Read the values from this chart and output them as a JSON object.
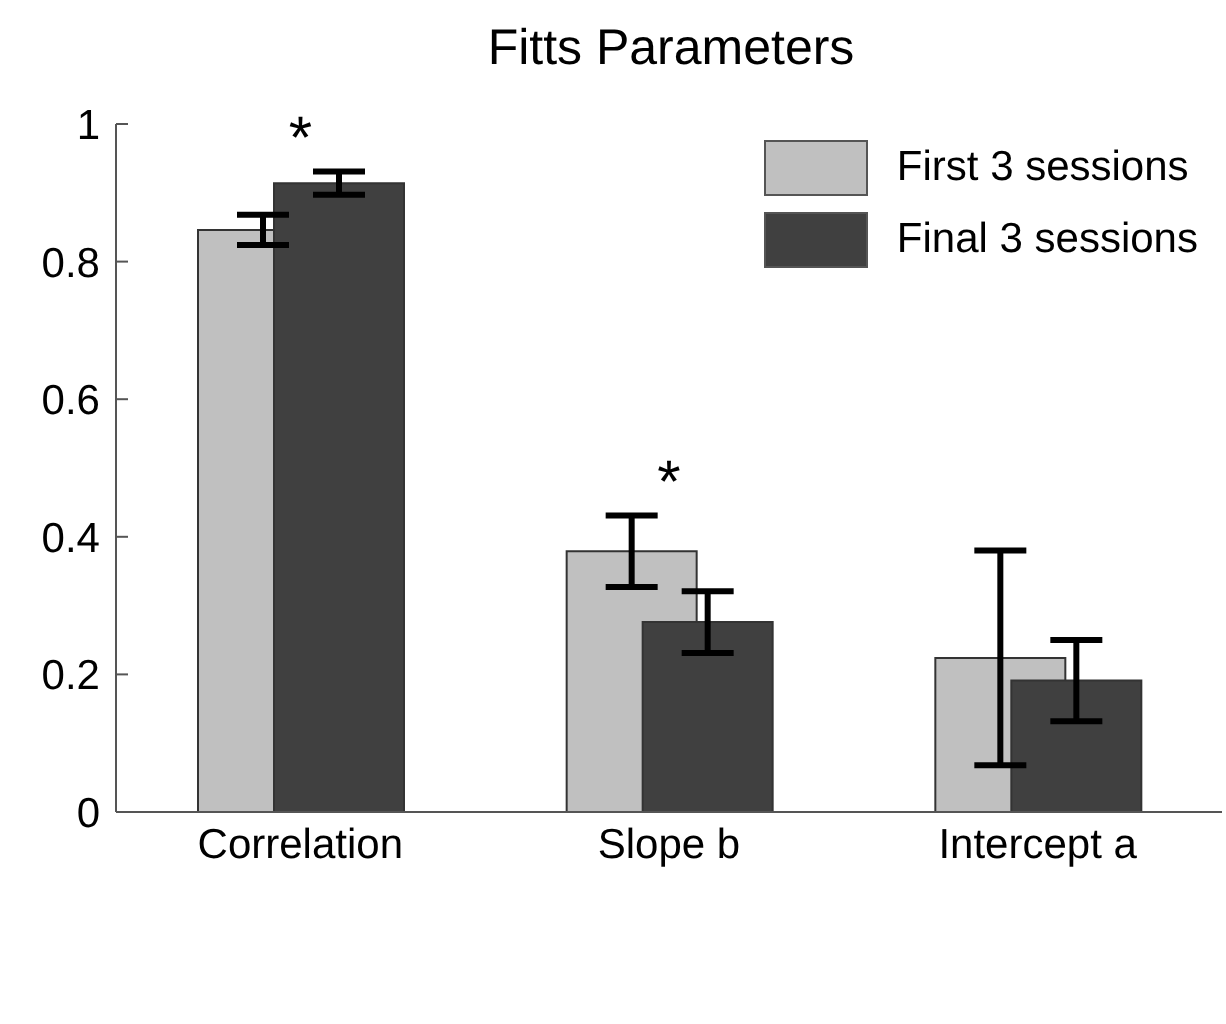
{
  "chart_data": {
    "type": "bar",
    "title": "Fitts Parameters",
    "categories": [
      "Correlation",
      "Slope b",
      "Intercept a"
    ],
    "series": [
      {
        "name": "First 3 sessions",
        "color": "#c0c0c0",
        "values": [
          0.846,
          0.379,
          0.224
        ],
        "errors": [
          0.022,
          0.052,
          0.156
        ]
      },
      {
        "name": "Final 3 sessions",
        "color": "#404040",
        "values": [
          0.914,
          0.276,
          0.191
        ],
        "errors": [
          0.017,
          0.045,
          0.059
        ]
      }
    ],
    "ylim": [
      0,
      1
    ],
    "yticks": [
      0,
      0.2,
      0.4,
      0.6,
      0.8,
      1
    ],
    "grid": false,
    "legend": "top right",
    "annotations": [
      "*",
      "*"
    ]
  }
}
